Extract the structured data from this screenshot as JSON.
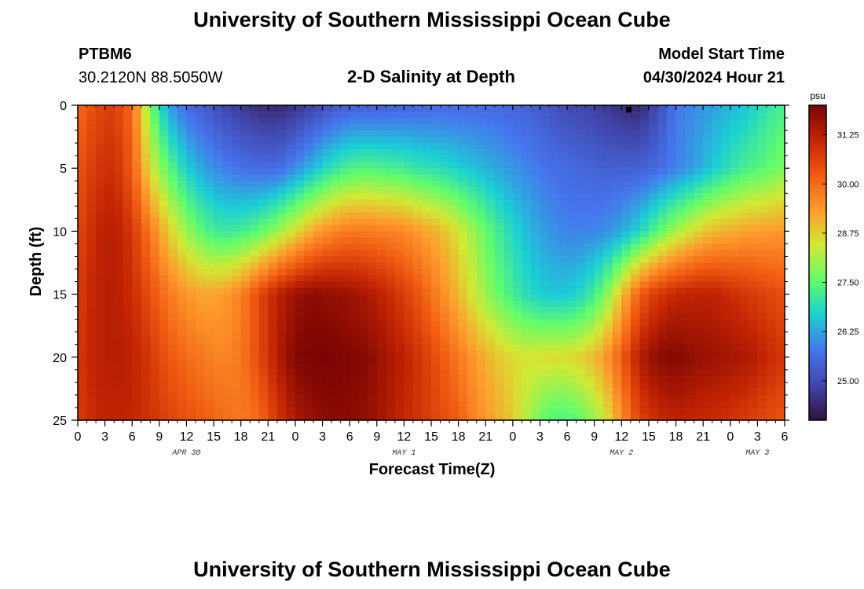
{
  "page": {
    "title": "University of Southern Mississippi Ocean Cube",
    "footer_title": "University of Southern Mississippi Ocean Cube"
  },
  "station": {
    "id": "PTBM6",
    "coords": "30.2120N  88.5050W"
  },
  "model": {
    "label": "Model Start Time",
    "start": "04/30/2024 Hour 21"
  },
  "chart_data": {
    "type": "heatmap",
    "title": "2-D Salinity at Depth",
    "xlabel": "Forecast Time(Z)",
    "ylabel": "Depth (ft)",
    "x_hours_range": [
      0,
      78
    ],
    "y_range": [
      0,
      25
    ],
    "y_inverted": true,
    "x_tick_hours": [
      0,
      3,
      6,
      9,
      12,
      15,
      18,
      21,
      24,
      27,
      30,
      33,
      36,
      39,
      42,
      45,
      48,
      51,
      54,
      57,
      60,
      63,
      66,
      69,
      72,
      75,
      78
    ],
    "x_tick_labels": [
      "0",
      "3",
      "6",
      "9",
      "12",
      "15",
      "18",
      "21",
      "0",
      "3",
      "6",
      "9",
      "12",
      "15",
      "18",
      "21",
      "0",
      "3",
      "6",
      "9",
      "12",
      "15",
      "18",
      "21",
      "0",
      "3",
      "6"
    ],
    "y_ticks": [
      0,
      5,
      10,
      15,
      20,
      25
    ],
    "y_tick_labels": [
      "0",
      "5",
      "10",
      "15",
      "20",
      "25"
    ],
    "date_labels": [
      {
        "hour": 12,
        "text": "APR 30"
      },
      {
        "hour": 36,
        "text": "MAY 1"
      },
      {
        "hour": 60,
        "text": "MAY 2"
      },
      {
        "hour": 75,
        "text": "MAY 3"
      }
    ],
    "colorbar": {
      "unit": "psu",
      "min": 24.0,
      "max": 32.0,
      "ticks": [
        25.0,
        26.25,
        27.5,
        28.75,
        30.0,
        31.25
      ],
      "tick_labels": [
        "25.00",
        "26.25",
        "27.50",
        "28.75",
        "30.00",
        "31.25"
      ],
      "colors": [
        "#30123b",
        "#4145ab",
        "#4675ed",
        "#1bcfd4",
        "#61fc6c",
        "#d2e935",
        "#fe9b2d",
        "#f05b12",
        "#c42503",
        "#7a0403"
      ]
    },
    "marker": {
      "hour": 60.8,
      "depth": 0.3,
      "shape": "square"
    },
    "grid_hours": [
      0,
      2,
      4,
      6,
      8,
      10,
      12,
      14,
      16,
      18,
      20,
      22,
      24,
      26,
      28,
      30,
      32,
      34,
      36,
      38,
      40,
      42,
      44,
      46,
      48,
      50,
      52,
      54,
      56,
      58,
      60,
      62,
      64,
      66,
      68,
      70,
      72,
      74,
      76,
      78
    ],
    "grid_depths": [
      0,
      5,
      10,
      15,
      20,
      25
    ],
    "salinity_psu": [
      [
        30.0,
        30.5,
        30.7,
        30.0,
        27.7,
        26.2,
        25.6,
        25.3,
        25.0,
        24.7,
        24.5,
        24.4,
        24.6,
        24.9,
        25.2,
        25.4,
        25.4,
        25.4,
        25.5,
        25.5,
        25.6,
        25.6,
        25.6,
        25.6,
        25.5,
        25.4,
        25.2,
        25.0,
        24.9,
        24.7,
        24.5,
        24.4,
        25.0,
        25.8,
        26.0,
        26.2,
        26.4,
        26.6,
        27.0,
        27.3
      ],
      [
        30.3,
        30.8,
        31.0,
        30.2,
        28.5,
        27.5,
        26.7,
        26.2,
        25.9,
        25.7,
        25.6,
        25.6,
        26.0,
        26.5,
        27.0,
        27.3,
        27.4,
        27.3,
        27.2,
        27.0,
        26.9,
        26.7,
        26.5,
        26.3,
        26.1,
        25.9,
        25.7,
        25.6,
        25.5,
        25.4,
        25.4,
        25.4,
        25.6,
        25.9,
        26.2,
        26.6,
        27.0,
        27.3,
        27.5,
        27.8
      ],
      [
        30.5,
        31.1,
        31.3,
        30.8,
        29.8,
        28.8,
        28.0,
        27.4,
        27.1,
        27.2,
        27.5,
        28.0,
        28.6,
        29.2,
        29.6,
        29.8,
        29.8,
        29.7,
        29.6,
        29.3,
        29.0,
        28.5,
        27.9,
        27.3,
        26.8,
        26.4,
        26.1,
        25.9,
        25.9,
        26.0,
        26.3,
        26.8,
        27.5,
        28.1,
        28.6,
        29.0,
        29.1,
        29.3,
        29.3,
        29.4
      ],
      [
        30.7,
        31.2,
        31.3,
        31.0,
        30.4,
        29.8,
        29.4,
        29.2,
        29.3,
        29.7,
        30.5,
        31.2,
        31.6,
        31.8,
        31.7,
        31.6,
        31.4,
        31.1,
        30.7,
        30.2,
        29.6,
        29.0,
        28.3,
        27.7,
        27.2,
        26.8,
        26.6,
        26.6,
        26.9,
        27.6,
        28.9,
        30.2,
        30.8,
        31.1,
        31.2,
        31.2,
        31.0,
        30.8,
        30.6,
        30.4
      ],
      [
        30.8,
        31.2,
        31.3,
        31.2,
        30.8,
        30.3,
        30.0,
        29.8,
        29.6,
        29.8,
        30.5,
        31.3,
        31.9,
        32.0,
        32.0,
        31.9,
        31.8,
        31.5,
        31.2,
        30.8,
        30.3,
        29.8,
        29.3,
        28.9,
        28.6,
        28.5,
        28.6,
        28.6,
        28.8,
        29.3,
        30.2,
        31.3,
        31.8,
        31.9,
        31.7,
        31.6,
        31.5,
        31.4,
        31.1,
        30.8
      ],
      [
        30.7,
        31.1,
        31.2,
        31.1,
        30.9,
        30.6,
        30.4,
        30.2,
        30.0,
        29.8,
        30.0,
        30.8,
        31.4,
        31.7,
        31.8,
        31.8,
        31.7,
        31.4,
        31.1,
        30.8,
        30.5,
        30.2,
        29.6,
        29.2,
        28.8,
        28.0,
        27.4,
        27.3,
        27.7,
        28.3,
        29.5,
        30.6,
        31.0,
        31.2,
        31.1,
        31.0,
        30.9,
        30.7,
        30.5,
        30.3
      ]
    ]
  }
}
